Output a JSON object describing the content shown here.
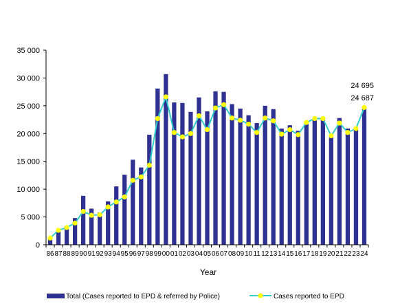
{
  "chart_data": {
    "type": "bar",
    "xlabel": "Year",
    "ylabel": "",
    "ylim": [
      0,
      35000
    ],
    "yticks": [
      0,
      5000,
      10000,
      15000,
      20000,
      25000,
      30000,
      35000
    ],
    "ytick_labels": [
      "0",
      "5 000",
      "10 000",
      "15 000",
      "20 000",
      "25 000",
      "30 000",
      "35 000"
    ],
    "grid": false,
    "legend_position": "bottom",
    "categories": [
      "86",
      "87",
      "88",
      "89",
      "90",
      "91",
      "92",
      "93",
      "94",
      "95",
      "96",
      "97",
      "98",
      "99",
      "00",
      "01",
      "02",
      "03",
      "04",
      "05",
      "06",
      "07",
      "08",
      "09",
      "10",
      "11",
      "12",
      "13",
      "14",
      "15",
      "16",
      "17",
      "18",
      "19",
      "20",
      "21",
      "22",
      "23",
      "24"
    ],
    "series": [
      {
        "name": "Total (Cases reported to EPD & referred by Police)",
        "type": "bar",
        "color": "#2E3192",
        "values": [
          1200,
          2600,
          3400,
          4800,
          8800,
          6500,
          5800,
          7800,
          10500,
          12600,
          15300,
          13900,
          19800,
          28100,
          30700,
          25600,
          25500,
          23900,
          26500,
          24000,
          27600,
          27500,
          25300,
          24500,
          23300,
          21900,
          25000,
          24400,
          20900,
          21500,
          20500,
          22200,
          22400,
          22700,
          19600,
          22800,
          20900,
          21100,
          24695
        ]
      },
      {
        "name": "Cases reported to EPD",
        "type": "line",
        "color": "#33CCCC",
        "marker_color": "#FFFF00",
        "values": [
          1200,
          2600,
          3100,
          3900,
          6000,
          5300,
          5400,
          6800,
          7700,
          8600,
          11600,
          12200,
          14300,
          22700,
          26600,
          20200,
          19400,
          20000,
          23200,
          20700,
          24600,
          25200,
          22800,
          22400,
          21700,
          20200,
          22800,
          22300,
          19900,
          20700,
          19800,
          22000,
          22700,
          22700,
          19600,
          21900,
          20200,
          20900,
          24687
        ]
      }
    ],
    "annotations": [
      "24 695",
      "24 687"
    ]
  }
}
